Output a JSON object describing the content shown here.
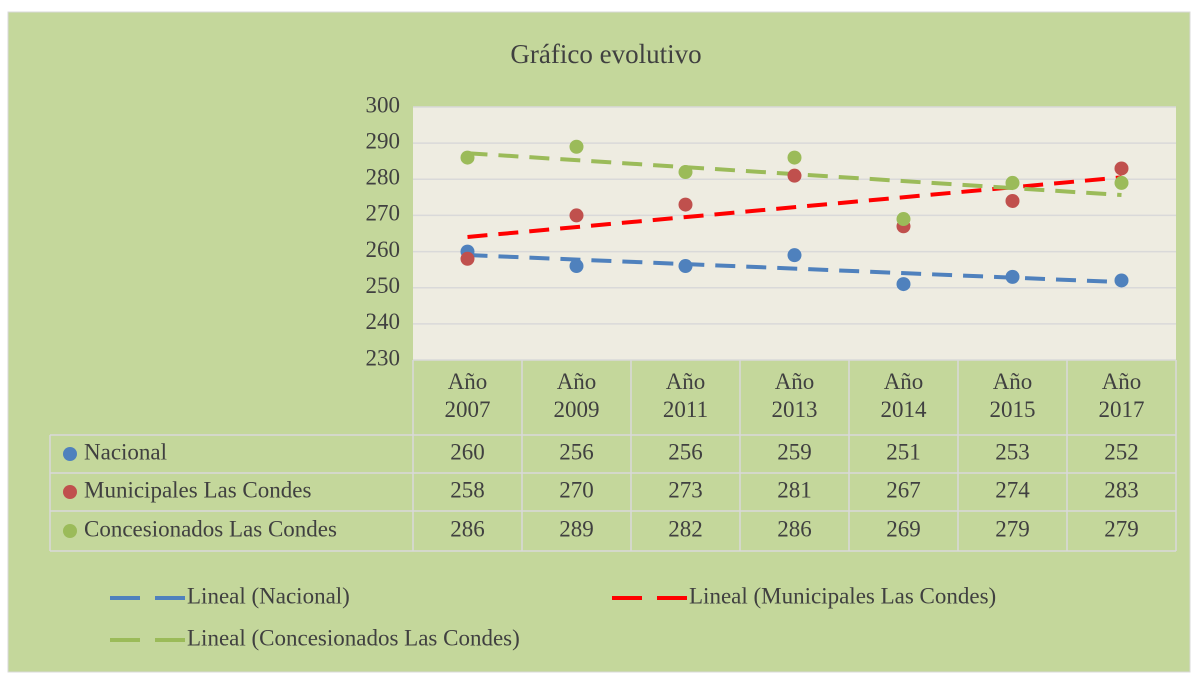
{
  "chart_data": {
    "type": "scatter",
    "title": "Gráfico evolutivo",
    "categories": [
      "Año 2007",
      "Año 2009",
      "Año 2011",
      "Año 2013",
      "Año 2014",
      "Año 2015",
      "Año 2017"
    ],
    "series": [
      {
        "name": "Nacional",
        "color": "#4f81bd",
        "values": [
          260,
          256,
          256,
          259,
          251,
          253,
          252
        ],
        "trendline": {
          "name": "Lineal (Nacional)",
          "color": "#4f81bd"
        }
      },
      {
        "name": "Municipales Las Condes",
        "color": "#c0504d",
        "values": [
          258,
          270,
          273,
          281,
          267,
          274,
          283
        ],
        "trendline": {
          "name": "Lineal (Municipales Las Condes)",
          "color": "#ff0000"
        }
      },
      {
        "name": "Concesionados Las Condes",
        "color": "#9bbb59",
        "values": [
          286,
          289,
          282,
          286,
          269,
          279,
          279
        ],
        "trendline": {
          "name": "Lineal (Concesionados Las Condes)",
          "color": "#9bbb59"
        }
      }
    ],
    "ylim": [
      230,
      300
    ],
    "yticks": [
      230,
      240,
      250,
      260,
      270,
      280,
      290,
      300
    ],
    "grid": true
  }
}
